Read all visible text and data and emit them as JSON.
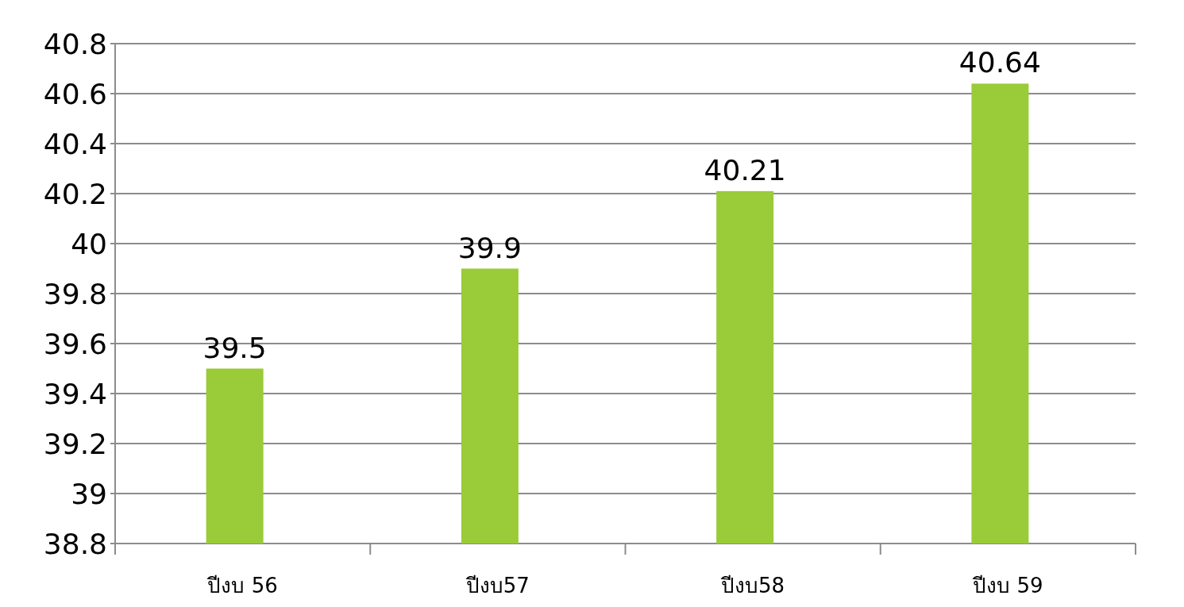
{
  "chart_data": {
    "type": "bar",
    "categories": [
      "ปีงบ 56",
      "ปีงบ57",
      "ปีงบ58",
      "ปีงบ 59"
    ],
    "values": [
      39.5,
      39.9,
      40.21,
      40.64
    ],
    "color": "#9acb38",
    "ylim": [
      38.8,
      40.8
    ],
    "yticks": [
      38.8,
      39,
      39.2,
      39.4,
      39.6,
      39.8,
      40,
      40.2,
      40.4,
      40.6,
      40.8
    ],
    "grid": "y",
    "data_labels": true
  }
}
